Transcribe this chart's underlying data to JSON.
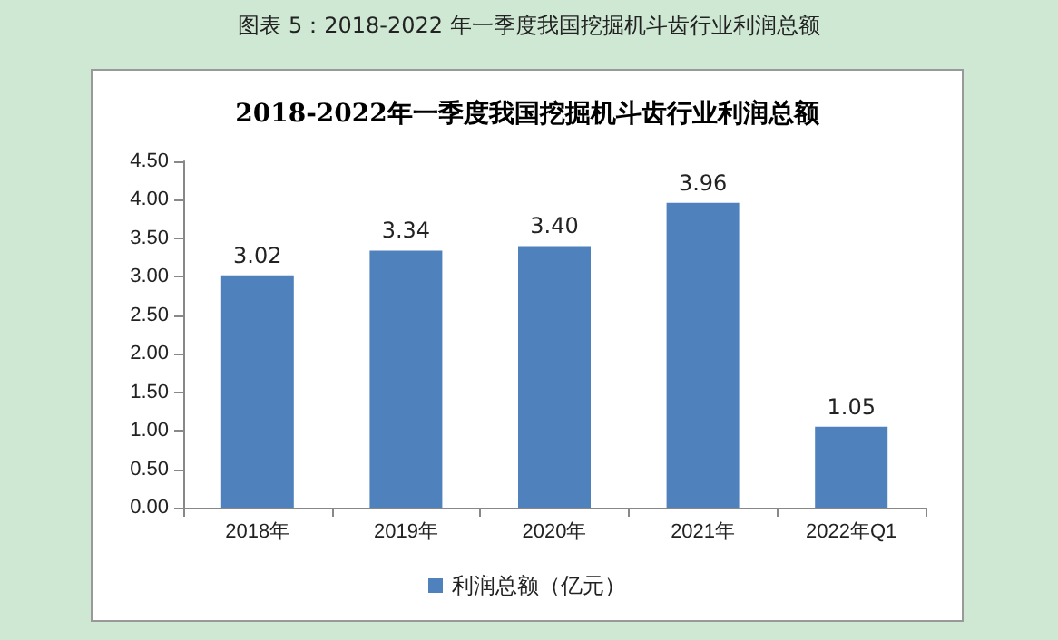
{
  "chart_data": {
    "type": "bar",
    "title": "2018-2022年一季度我国挖掘机斗齿行业利润总额",
    "annotations": [
      "图表 5：2018-2022 年一季度我国挖掘机斗齿行业利润总额"
    ],
    "categories": [
      "2018年",
      "2019年",
      "2020年",
      "2021年",
      "2022年Q1"
    ],
    "series": [
      {
        "name": "利润总额（亿元）",
        "color": "#4f81bd",
        "values": [
          3.02,
          3.34,
          3.4,
          3.96,
          1.05
        ],
        "value_labels": [
          "3.02",
          "3.34",
          "3.40",
          "3.96",
          "1.05"
        ]
      }
    ],
    "ylim": [
      0,
      4.5
    ],
    "yticks": [
      {
        "value": 0,
        "label": "0.00"
      },
      {
        "value": 0.5,
        "label": "0.50"
      },
      {
        "value": 1,
        "label": "1.00"
      },
      {
        "value": 1.5,
        "label": "1.50"
      },
      {
        "value": 2,
        "label": "2.00"
      },
      {
        "value": 2.5,
        "label": "2.50"
      },
      {
        "value": 3,
        "label": "3.00"
      },
      {
        "value": 3.5,
        "label": "3.50"
      },
      {
        "value": 4,
        "label": "4.00"
      },
      {
        "value": 4.5,
        "label": "4.50"
      }
    ],
    "grid": false,
    "legend": "bottom"
  }
}
